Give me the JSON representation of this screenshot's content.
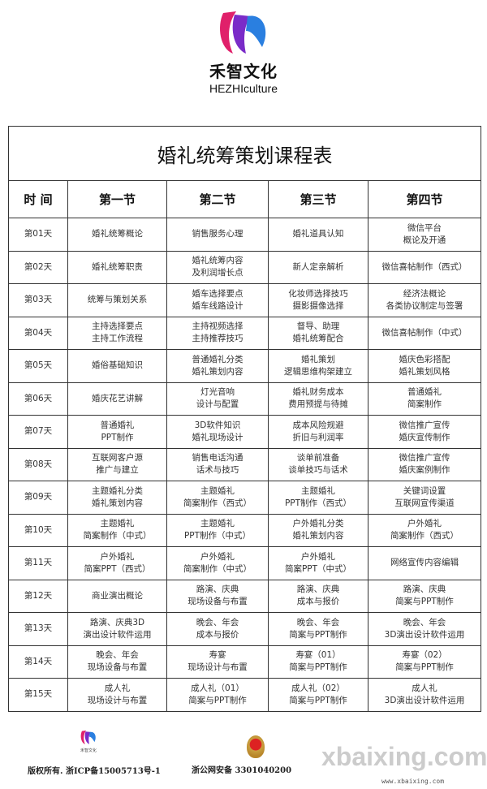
{
  "brand": {
    "name_cn": "禾智文化",
    "name_en": "HEZHIculture"
  },
  "table": {
    "title": "婚礼统筹策划课程表",
    "headers": [
      "时 间",
      "第一节",
      "第二节",
      "第三节",
      "第四节"
    ],
    "rows": [
      [
        "第01天",
        "婚礼统筹概论",
        "销售服务心理",
        "婚礼道具认知",
        "微信平台\n概论及开通"
      ],
      [
        "第02天",
        "婚礼统筹职责",
        "婚礼统筹内容\n及利润增长点",
        "新人定亲解析",
        "微信喜帖制作（西式）"
      ],
      [
        "第03天",
        "统筹与策划关系",
        "婚车选择要点\n婚车线路设计",
        "化妆师选择技巧\n摄影摄像选择",
        "经济法概论\n各类协议制定与签署"
      ],
      [
        "第04天",
        "主持选择要点\n主持工作流程",
        "主持视频选择\n主持推荐技巧",
        "督导、助理\n婚礼统筹配合",
        "微信喜帖制作（中式）"
      ],
      [
        "第05天",
        "婚俗基础知识",
        "普通婚礼分类\n婚礼策划内容",
        "婚礼策划\n逻辑思维构架建立",
        "婚庆色彩搭配\n婚礼策划风格"
      ],
      [
        "第06天",
        "婚庆花艺讲解",
        "灯光音响\n设计与配置",
        "婚礼财务成本\n费用预提与待摊",
        "普通婚礼\n简案制作"
      ],
      [
        "第07天",
        "普通婚礼\nPPT制作",
        "3D软件知识\n婚礼现场设计",
        "成本风险规避\n折旧与利润率",
        "微信推广宣传\n婚庆宣传制作"
      ],
      [
        "第08天",
        "互联网客户源\n推广与建立",
        "销售电话沟通\n话术与技巧",
        "谈单前准备\n谈单技巧与话术",
        "微信推广宣传\n婚庆案例制作"
      ],
      [
        "第09天",
        "主题婚礼分类\n婚礼策划内容",
        "主题婚礼\n简案制作（西式）",
        "主题婚礼\nPPT制作（西式）",
        "关键词设置\n互联网宣传渠道"
      ],
      [
        "第10天",
        "主题婚礼\n简案制作（中式）",
        "主题婚礼\nPPT制作（中式）",
        "户外婚礼分类\n婚礼策划内容",
        "户外婚礼\n简案制作（西式）"
      ],
      [
        "第11天",
        "户外婚礼\n简案PPT（西式）",
        "户外婚礼\n简案制作（中式）",
        "户外婚礼\n简案PPT（中式）",
        "网络宣传内容编辑"
      ],
      [
        "第12天",
        "商业演出概论",
        "路演、庆典\n现场设备与布置",
        "路演、庆典\n成本与报价",
        "路演、庆典\n简案与PPT制作"
      ],
      [
        "第13天",
        "路演、庆典3D\n演出设计软件运用",
        "晚会、年会\n成本与报价",
        "晚会、年会\n简案与PPT制作",
        "晚会、年会\n3D演出设计软件运用"
      ],
      [
        "第14天",
        "晚会、年会\n现场设备与布置",
        "寿宴\n现场设计与布置",
        "寿宴（01）\n简案与PPT制作",
        "寿宴（02）\n简案与PPT制作"
      ],
      [
        "第15天",
        "成人礼\n现场设计与布置",
        "成人礼（01）\n简案与PPT制作",
        "成人礼（02）\n简案与PPT制作",
        "成人礼\n3D演出设计软件运用"
      ]
    ]
  },
  "footer": {
    "copyright": "版权所有. 浙ICP备15005713号-1",
    "security": "浙公网安备 3301040200",
    "watermark": "xbaixing.com",
    "watermark_url": "www.xbaixing.com"
  }
}
